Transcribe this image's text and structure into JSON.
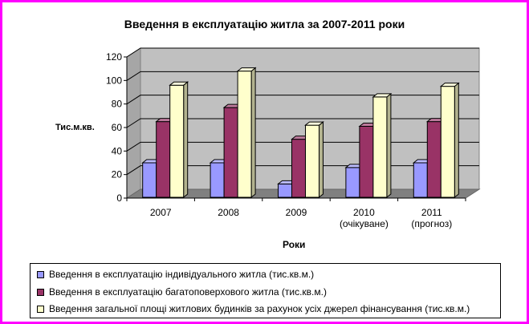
{
  "chart_data": {
    "type": "bar",
    "title": "Введення в експлуатацію житла за 2007-2011 роки",
    "xlabel": "Роки",
    "ylabel": "Тис.м.кв.",
    "ylim": [
      0,
      120
    ],
    "yticks": [
      "0",
      "20",
      "40",
      "60",
      "80",
      "100",
      "120"
    ],
    "categories": [
      [
        "2007"
      ],
      [
        "2008"
      ],
      [
        "2009"
      ],
      [
        "2010",
        "(очікуване)"
      ],
      [
        "2011",
        "(прогноз)"
      ]
    ],
    "series": [
      {
        "name": "Введення в експлуатацію індивідуального житла  (тис.кв.м.)",
        "color": "#9999ff",
        "values": [
          30,
          30,
          12,
          26,
          30
        ]
      },
      {
        "name": "Введення в експлуатацію багатоповерхового житла  (тис.кв.м.)",
        "color": "#993366",
        "values": [
          65,
          77,
          50,
          61,
          65
        ]
      },
      {
        "name": "Введення загальної площі житлових будинків за рахунок усіх джерел фінансування  (тис.кв.м.)",
        "color": "#ffffcc",
        "values": [
          96,
          108,
          62,
          86,
          95
        ]
      }
    ],
    "grid": true,
    "legend_position": "bottom"
  }
}
